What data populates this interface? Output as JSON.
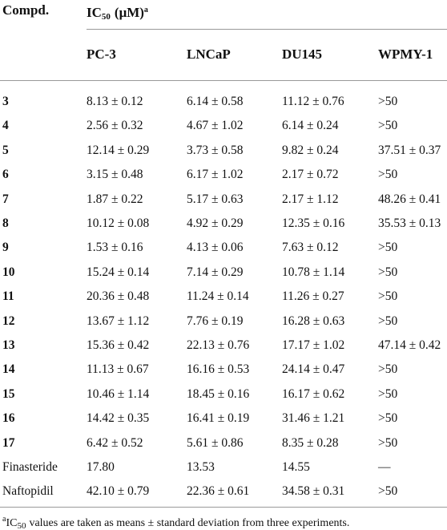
{
  "header": {
    "compd": "Compd.",
    "ic50": {
      "main": "IC",
      "sub": "50",
      "unit": "(μM)",
      "note": "a"
    },
    "columns": [
      "PC-3",
      "LNCaP",
      "DU145",
      "WPMY-1"
    ]
  },
  "table": {
    "rows": [
      [
        "3",
        "8.13 ± 0.12",
        "6.14 ± 0.58",
        "11.12 ± 0.76",
        ">50"
      ],
      [
        "4",
        "2.56 ± 0.32",
        "4.67 ± 1.02",
        "6.14 ± 0.24",
        ">50"
      ],
      [
        "5",
        "12.14 ± 0.29",
        "3.73 ± 0.58",
        "9.82 ± 0.24",
        "37.51 ± 0.37"
      ],
      [
        "6",
        "3.15 ± 0.48",
        "6.17 ± 1.02",
        "2.17 ± 0.72",
        ">50"
      ],
      [
        "7",
        "1.87 ± 0.22",
        "5.17 ± 0.63",
        "2.17 ± 1.12",
        "48.26 ± 0.41"
      ],
      [
        "8",
        "10.12 ± 0.08",
        "4.92 ± 0.29",
        "12.35 ± 0.16",
        "35.53 ± 0.13"
      ],
      [
        "9",
        "1.53 ± 0.16",
        "4.13 ± 0.06",
        "7.63 ± 0.12",
        ">50"
      ],
      [
        "10",
        "15.24 ± 0.14",
        "7.14 ± 0.29",
        "10.78 ± 1.14",
        ">50"
      ],
      [
        "11",
        "20.36 ± 0.48",
        "11.24 ± 0.14",
        "11.26 ± 0.27",
        ">50"
      ],
      [
        "12",
        "13.67 ± 1.12",
        "7.76 ± 0.19",
        "16.28 ± 0.63",
        ">50"
      ],
      [
        "13",
        "15.36 ± 0.42",
        "22.13 ± 0.76",
        "17.17 ± 1.02",
        "47.14 ± 0.42"
      ],
      [
        "14",
        "11.13 ± 0.67",
        "16.16 ± 0.53",
        "24.14 ± 0.47",
        ">50"
      ],
      [
        "15",
        "10.46 ± 1.14",
        "18.45 ± 0.16",
        "16.17 ± 0.62",
        ">50"
      ],
      [
        "16",
        "14.42 ± 0.35",
        "16.41 ± 0.19",
        "31.46 ± 1.21",
        ">50"
      ],
      [
        "17",
        "6.42 ± 0.52",
        "5.61 ± 0.86",
        "8.35 ± 0.28",
        ">50"
      ],
      [
        "Finasteride",
        "17.80",
        "13.53",
        "14.55",
        "—"
      ],
      [
        "Naftopidil",
        "42.10 ± 0.79",
        "22.36 ± 0.61",
        "34.58 ± 0.31",
        ">50"
      ]
    ]
  },
  "footnote": {
    "mark": "a",
    "main": "IC",
    "sub": "50",
    "text": "values are taken as means ± standard deviation from three experiments."
  }
}
